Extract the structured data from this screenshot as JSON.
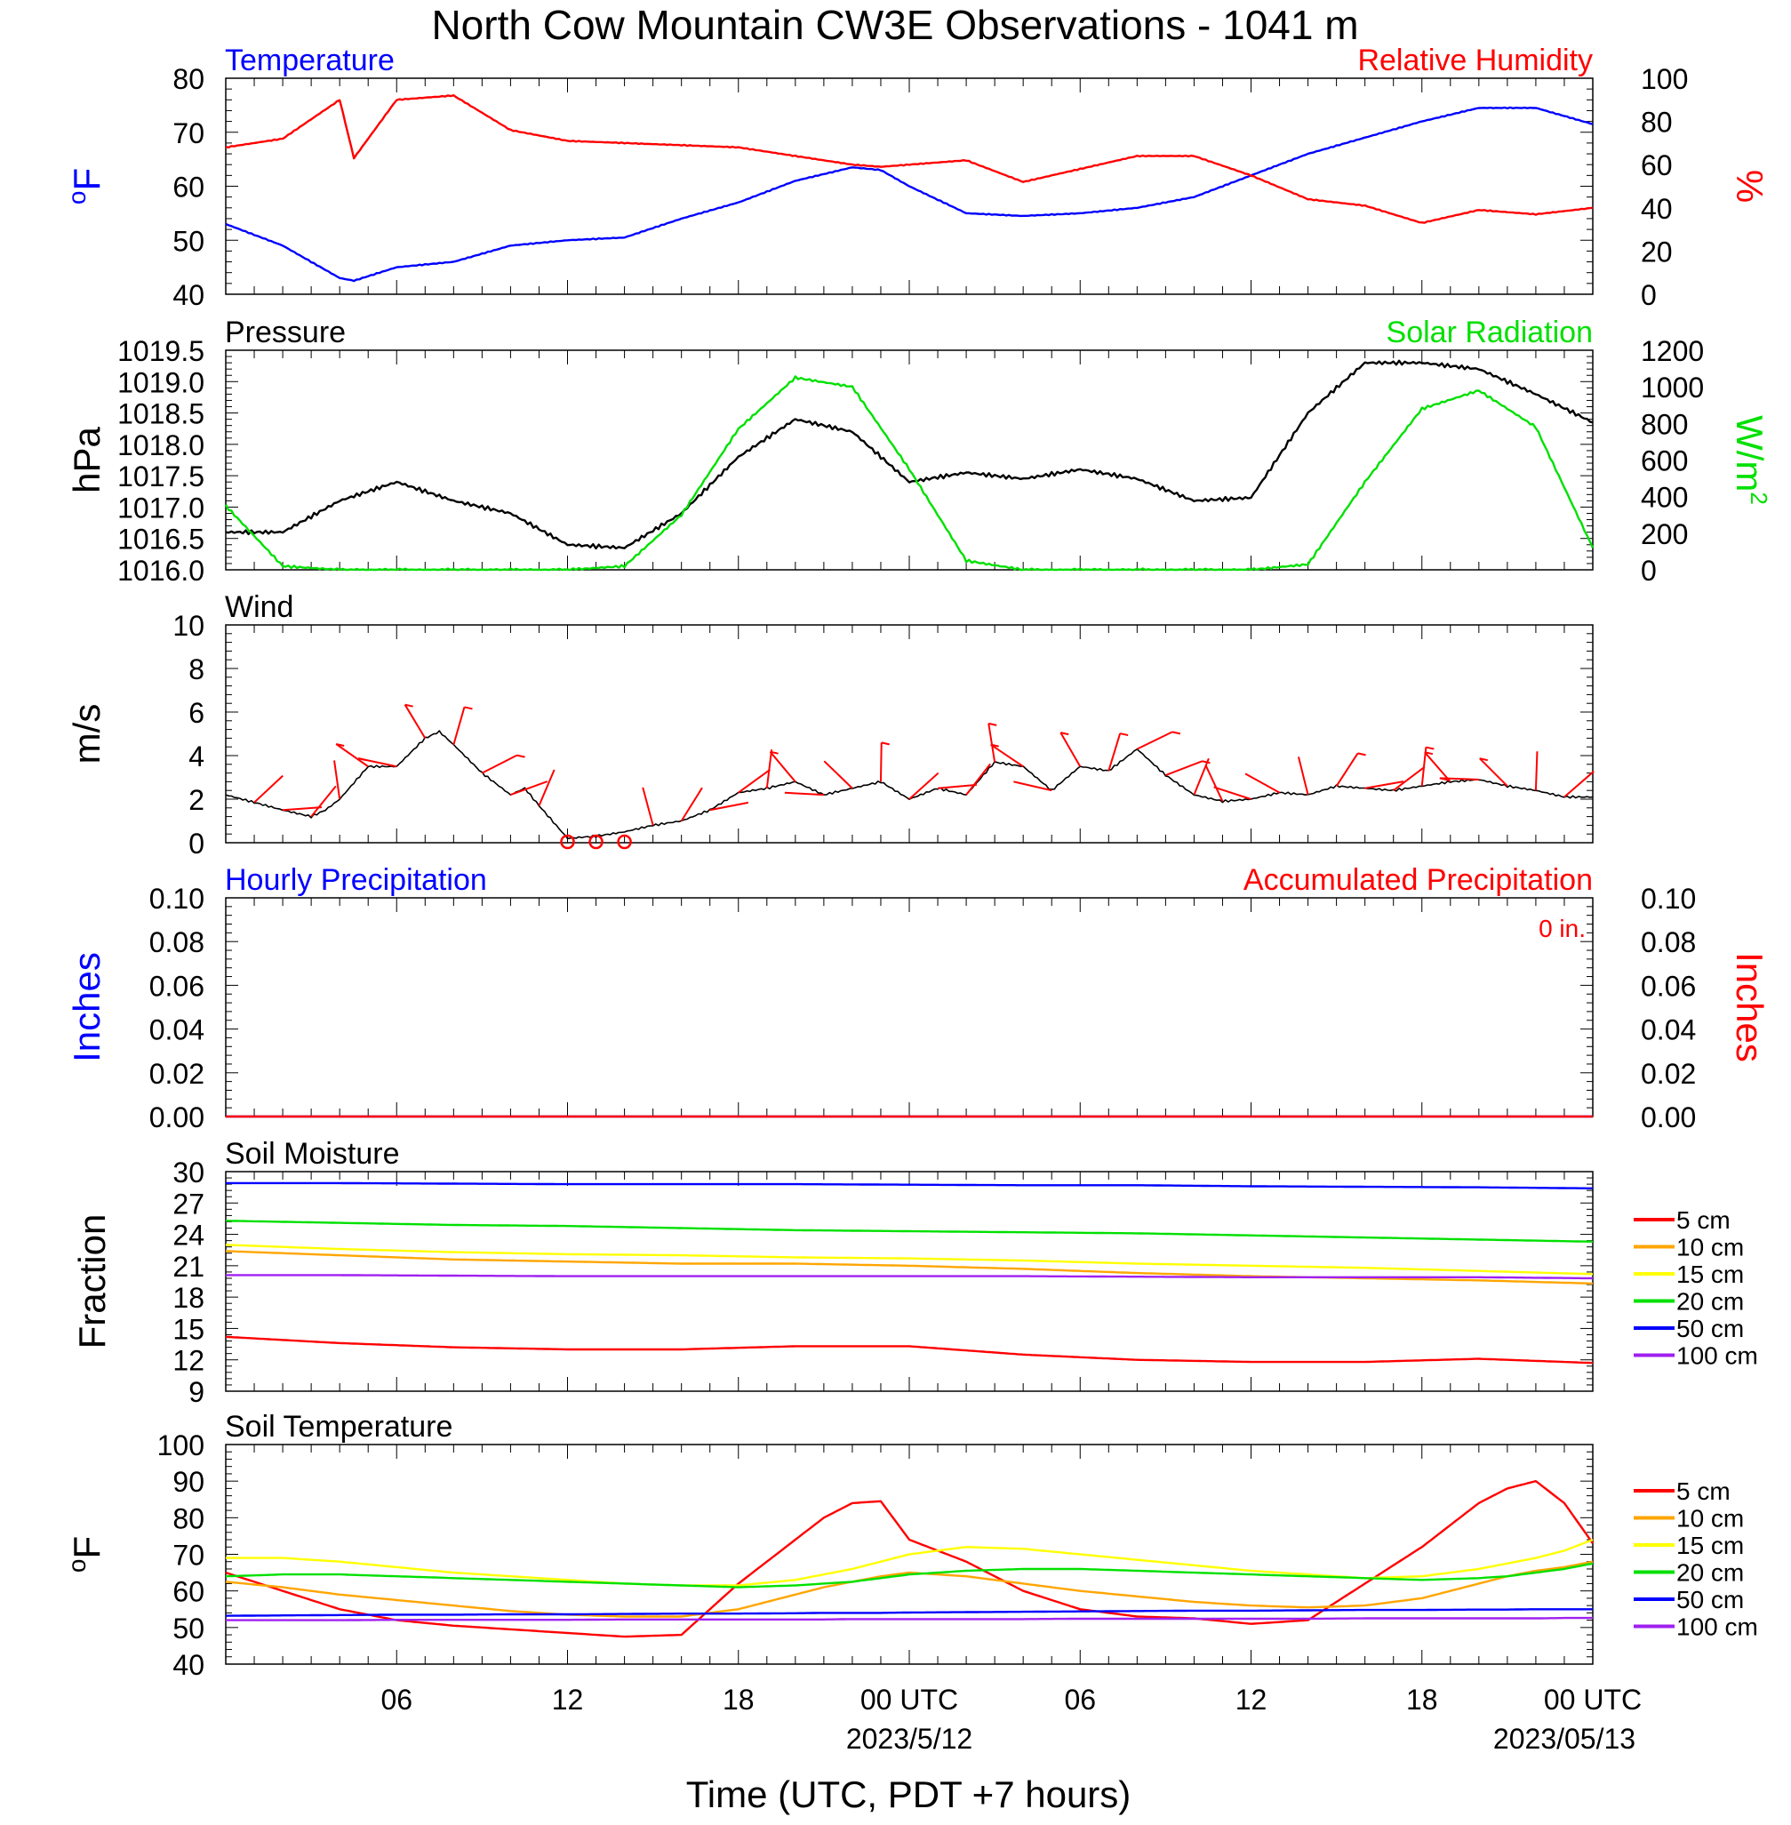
{
  "title": "North Cow Mountain CW3E Observations - 1041 m",
  "xaxis": {
    "label": "Time (UTC, PDT +7 hours)",
    "ticks": [
      "06",
      "12",
      "18",
      "00 UTC",
      "06",
      "12",
      "18",
      "00 UTC"
    ],
    "dates": [
      "2023/5/12",
      "2023/05/13"
    ]
  },
  "legend_labels": [
    "5 cm",
    "10 cm",
    "15 cm",
    "20 cm",
    "50 cm",
    "100 cm"
  ],
  "colors": {
    "red": "#ff0000",
    "blue": "#0000ff",
    "green": "#00e000",
    "orange": "#ffa500",
    "yellow": "#ffff00",
    "purple": "#a020f0",
    "black": "#000000"
  },
  "chart_data": [
    {
      "type": "line",
      "panel": "temperature-humidity",
      "title_left": "Temperature",
      "title_right": "Relative Humidity",
      "ylabel": "oF",
      "ylabel_right": "%",
      "ylim": [
        40,
        80
      ],
      "ylim_right": [
        0,
        100
      ],
      "yticks": [
        "40",
        "50",
        "60",
        "70",
        "80"
      ],
      "yticks_right": [
        "0",
        "20",
        "40",
        "60",
        "80",
        "100"
      ],
      "x_hours": [
        0,
        2,
        4,
        4.5,
        6,
        8,
        10,
        12,
        14,
        16,
        18,
        20,
        22,
        23,
        24,
        26,
        28,
        30,
        32,
        34,
        36,
        38,
        40,
        42,
        44,
        46,
        48
      ],
      "series": [
        {
          "name": "Temperature",
          "axis": "left",
          "color": "#0000ff",
          "values": [
            53,
            49,
            43,
            42.5,
            45,
            46,
            49,
            50,
            50.5,
            54,
            57,
            61,
            63.5,
            63,
            60,
            55,
            54.5,
            55,
            56,
            58,
            62,
            66,
            69,
            72,
            74.5,
            74.5,
            71.5
          ]
        },
        {
          "name": "Relative Humidity",
          "axis": "right",
          "color": "#ff0000",
          "values": [
            68,
            72,
            90,
            63,
            90,
            92,
            76,
            71,
            70,
            69,
            68,
            64,
            60,
            59,
            60,
            62,
            52,
            58,
            64,
            64,
            55,
            44,
            41,
            33,
            39,
            37,
            40
          ]
        }
      ]
    },
    {
      "type": "line",
      "panel": "pressure-solar",
      "title_left": "Pressure",
      "title_right": "Solar Radiation",
      "ylabel": "hPa",
      "ylabel_right": "W/m2",
      "ylim": [
        1016.0,
        1019.5
      ],
      "ylim_right": [
        0,
        1200
      ],
      "yticks": [
        "1016.0",
        "1016.5",
        "1017.0",
        "1017.5",
        "1018.0",
        "1018.5",
        "1019.0",
        "1019.5"
      ],
      "yticks_right": [
        "0",
        "200",
        "400",
        "600",
        "800",
        "1000",
        "1200"
      ],
      "x_hours": [
        0,
        2,
        4,
        6,
        8,
        10,
        12,
        14,
        16,
        18,
        20,
        22,
        24,
        26,
        28,
        30,
        32,
        34,
        36,
        38,
        40,
        42,
        44,
        46,
        48
      ],
      "series": [
        {
          "name": "Pressure",
          "axis": "left",
          "color": "#000000",
          "values": [
            1016.6,
            1016.6,
            1017.1,
            1017.4,
            1017.1,
            1016.9,
            1016.4,
            1016.35,
            1016.9,
            1017.8,
            1018.4,
            1018.2,
            1017.4,
            1017.55,
            1017.45,
            1017.6,
            1017.45,
            1017.1,
            1017.15,
            1018.5,
            1019.3,
            1019.3,
            1019.2,
            1018.8,
            1018.35
          ]
        },
        {
          "name": "Solar Radiation",
          "axis": "right",
          "color": "#00e000",
          "values": [
            350,
            20,
            0,
            0,
            0,
            0,
            0,
            20,
            300,
            770,
            1050,
            1000,
            550,
            50,
            0,
            0,
            0,
            0,
            0,
            30,
            480,
            880,
            980,
            780,
            120
          ]
        }
      ]
    },
    {
      "type": "line",
      "panel": "wind",
      "title_left": "Wind",
      "ylabel": "m/s",
      "ylim": [
        0,
        10
      ],
      "yticks": [
        "0",
        "2",
        "4",
        "6",
        "8",
        "10"
      ],
      "x_hours": [
        0,
        2,
        3,
        3.5,
        4,
        5,
        6,
        7,
        7.5,
        8,
        9,
        10,
        10.5,
        11,
        12,
        13,
        14,
        15,
        16,
        17,
        18,
        19,
        20,
        21,
        22,
        23,
        24,
        25,
        26,
        27,
        28,
        29,
        30,
        31,
        32,
        33,
        34,
        35,
        36,
        37,
        38,
        39,
        40,
        41,
        42,
        43,
        44,
        45,
        46,
        47,
        48
      ],
      "series": [
        {
          "name": "Wind",
          "color": "#000000",
          "values": [
            2.2,
            1.5,
            1.2,
            1.5,
            2,
            3.5,
            3.5,
            4.8,
            5.1,
            4.5,
            3.2,
            2.2,
            2.5,
            1.7,
            0.2,
            0.3,
            0.5,
            0.8,
            1,
            1.5,
            2.3,
            2.5,
            2.8,
            2.2,
            2.5,
            2.8,
            2,
            2.5,
            2.2,
            3.7,
            3.5,
            2.4,
            3.5,
            3.3,
            4.3,
            3.1,
            2.2,
            1.9,
            2,
            2.3,
            2.2,
            2.6,
            2.5,
            2.4,
            2.6,
            2.8,
            2.9,
            2.6,
            2.4,
            2.1,
            2.1
          ]
        }
      ],
      "calm_markers_hours": [
        12,
        13,
        14
      ]
    },
    {
      "type": "line",
      "panel": "precipitation",
      "title_left": "Hourly Precipitation",
      "title_right": "Accumulated Precipitation",
      "annotation": "0 in.",
      "ylabel": "Inches",
      "ylabel_right": "Inches",
      "ylim": [
        0,
        0.1
      ],
      "ylim_right": [
        0,
        0.1
      ],
      "yticks": [
        "0.00",
        "0.02",
        "0.04",
        "0.06",
        "0.08",
        "0.10"
      ],
      "yticks_right": [
        "0.00",
        "0.02",
        "0.04",
        "0.06",
        "0.08",
        "0.10"
      ],
      "x_hours": [
        0,
        48
      ],
      "series": [
        {
          "name": "Hourly Precipitation",
          "axis": "left",
          "color": "#0000ff",
          "values": [
            0,
            0
          ]
        },
        {
          "name": "Accumulated Precipitation",
          "axis": "right",
          "color": "#ff0000",
          "values": [
            0,
            0
          ]
        }
      ]
    },
    {
      "type": "line",
      "panel": "soil-moisture",
      "title_left": "Soil Moisture",
      "ylabel": "Fraction",
      "ylim": [
        9,
        30
      ],
      "yticks": [
        "9",
        "12",
        "15",
        "18",
        "21",
        "24",
        "27",
        "30"
      ],
      "x_hours": [
        0,
        4,
        8,
        12,
        16,
        20,
        24,
        28,
        32,
        36,
        40,
        44,
        48
      ],
      "series": [
        {
          "name": "5 cm",
          "color": "#ff0000",
          "values": [
            14.2,
            13.6,
            13.2,
            13,
            13,
            13.3,
            13.3,
            12.5,
            12,
            11.8,
            11.8,
            12.1,
            11.7
          ]
        },
        {
          "name": "10 cm",
          "color": "#ffa500",
          "values": [
            22.4,
            22,
            21.6,
            21.4,
            21.2,
            21.2,
            21,
            20.7,
            20.3,
            20,
            19.8,
            19.6,
            19.3
          ]
        },
        {
          "name": "15 cm",
          "color": "#ffff00",
          "values": [
            23,
            22.6,
            22.3,
            22.1,
            22,
            21.8,
            21.7,
            21.5,
            21.2,
            21,
            20.8,
            20.5,
            20.2
          ]
        },
        {
          "name": "20 cm",
          "color": "#00e000",
          "values": [
            25.3,
            25.1,
            24.9,
            24.8,
            24.6,
            24.4,
            24.3,
            24.2,
            24.1,
            23.9,
            23.7,
            23.5,
            23.3
          ]
        },
        {
          "name": "50 cm",
          "color": "#0000ff",
          "values": [
            28.9,
            28.9,
            28.85,
            28.8,
            28.8,
            28.8,
            28.75,
            28.7,
            28.7,
            28.6,
            28.55,
            28.5,
            28.4
          ]
        },
        {
          "name": "100 cm",
          "color": "#a020f0",
          "values": [
            20.1,
            20.1,
            20.05,
            20,
            20,
            20,
            20,
            20,
            19.95,
            19.9,
            19.9,
            19.9,
            19.8
          ]
        }
      ]
    },
    {
      "type": "line",
      "panel": "soil-temperature",
      "title_left": "Soil Temperature",
      "ylabel": "oF",
      "ylim": [
        40,
        100
      ],
      "yticks": [
        "40",
        "50",
        "60",
        "70",
        "80",
        "90",
        "100"
      ],
      "x_hours": [
        0,
        2,
        4,
        6,
        8,
        10,
        12,
        14,
        16,
        18,
        20,
        21,
        22,
        23,
        24,
        26,
        28,
        30,
        32,
        34,
        36,
        38,
        40,
        42,
        44,
        45,
        46,
        47,
        48
      ],
      "series": [
        {
          "name": "5 cm",
          "color": "#ff0000",
          "values": [
            65,
            60,
            55,
            52,
            50.5,
            49.5,
            48.5,
            47.5,
            48,
            62,
            74,
            80,
            84,
            84.5,
            74,
            68,
            60,
            55,
            53,
            52.5,
            51,
            52,
            62,
            72,
            84,
            88,
            90,
            84,
            73
          ]
        },
        {
          "name": "10 cm",
          "color": "#ffa500",
          "values": [
            62.5,
            61,
            59,
            57.5,
            56,
            54.5,
            53.5,
            53,
            53,
            55,
            59,
            61,
            62.5,
            64,
            65,
            64,
            62,
            60,
            58.5,
            57,
            56,
            55.5,
            56,
            58,
            62,
            64,
            65.5,
            66.5,
            68
          ]
        },
        {
          "name": "15 cm",
          "color": "#ffff00",
          "values": [
            69,
            69,
            68,
            66.5,
            65,
            64,
            63,
            62,
            61.5,
            61.5,
            63,
            64.5,
            66,
            68,
            70,
            72,
            71.5,
            70,
            68.5,
            67,
            65.5,
            64.5,
            63.5,
            64,
            66,
            67.5,
            69,
            71,
            74
          ]
        },
        {
          "name": "20 cm",
          "color": "#00e000",
          "values": [
            64,
            64.5,
            64.5,
            64,
            63.5,
            63,
            62.5,
            62,
            61.5,
            61,
            61.5,
            62,
            62.5,
            63.5,
            64.5,
            65.5,
            66,
            66,
            65.5,
            65,
            64.5,
            64,
            63.5,
            63,
            63.5,
            64,
            65,
            66,
            67.5
          ]
        },
        {
          "name": "50 cm",
          "color": "#0000ff",
          "values": [
            53.2,
            53.3,
            53.4,
            53.5,
            53.5,
            53.6,
            53.6,
            53.7,
            53.8,
            53.8,
            53.9,
            54,
            54,
            54,
            54.1,
            54.2,
            54.3,
            54.4,
            54.5,
            54.6,
            54.6,
            54.7,
            54.8,
            54.8,
            54.9,
            54.9,
            55,
            55,
            55
          ]
        },
        {
          "name": "100 cm",
          "color": "#a020f0",
          "values": [
            52,
            52,
            52,
            52.1,
            52.1,
            52.1,
            52.1,
            52.2,
            52.2,
            52.2,
            52.2,
            52.2,
            52.3,
            52.3,
            52.3,
            52.3,
            52.3,
            52.4,
            52.4,
            52.4,
            52.4,
            52.4,
            52.5,
            52.5,
            52.5,
            52.5,
            52.5,
            52.6,
            52.6
          ]
        }
      ]
    }
  ]
}
